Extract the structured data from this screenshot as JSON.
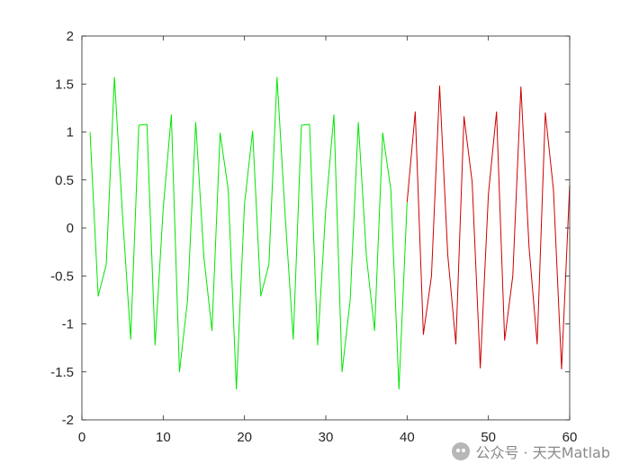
{
  "chart_data": {
    "type": "line",
    "title": "",
    "xlabel": "",
    "ylabel": "",
    "xlim": [
      0,
      60
    ],
    "ylim": [
      -2,
      2
    ],
    "xticks": [
      0,
      10,
      20,
      30,
      40,
      50,
      60
    ],
    "yticks": [
      -2,
      -1.5,
      -1,
      -0.5,
      0,
      0.5,
      1,
      1.5,
      2
    ],
    "ytick_labels": [
      "-2",
      "-1.5",
      "-1",
      "-0.5",
      "0",
      "0.5",
      "1",
      "1.5",
      "2"
    ],
    "grid": false,
    "series": [
      {
        "color": "#00e600",
        "x": [
          1,
          2,
          3,
          4,
          5,
          6,
          7,
          8,
          9,
          10,
          11,
          12,
          13,
          14,
          15,
          16,
          17,
          18,
          19,
          20,
          21,
          22,
          23,
          24,
          25,
          26,
          27,
          28,
          29,
          30,
          31,
          32,
          33,
          34,
          35,
          36,
          37,
          38,
          39,
          40
        ],
        "y": [
          1.0,
          -0.71,
          -0.38,
          1.57,
          0.13,
          -1.16,
          1.07,
          1.08,
          -1.22,
          0.2,
          1.18,
          -1.5,
          -0.75,
          1.1,
          -0.3,
          -1.07,
          0.99,
          0.4,
          -1.68,
          0.25,
          1.01,
          -0.71,
          -0.38,
          1.57,
          0.13,
          -1.16,
          1.07,
          1.08,
          -1.22,
          0.2,
          1.18,
          -1.5,
          -0.75,
          1.1,
          -0.3,
          -1.07,
          0.99,
          0.4,
          -1.68,
          0.27
        ]
      },
      {
        "color": "#cc0000",
        "x": [
          40,
          41,
          42,
          43,
          44,
          45,
          46,
          47,
          48,
          49,
          50,
          51,
          52,
          53,
          54,
          55,
          56,
          57,
          58,
          59,
          60
        ],
        "y": [
          0.27,
          1.21,
          -1.11,
          -0.5,
          1.48,
          -0.28,
          -1.21,
          1.16,
          0.48,
          -1.46,
          0.35,
          1.21,
          -1.17,
          -0.5,
          1.47,
          -0.2,
          -1.21,
          1.2,
          0.4,
          -1.47,
          0.45
        ]
      }
    ]
  },
  "watermark": {
    "text": "公众号 · 天天Matlab",
    "icon": "wechat-icon"
  }
}
